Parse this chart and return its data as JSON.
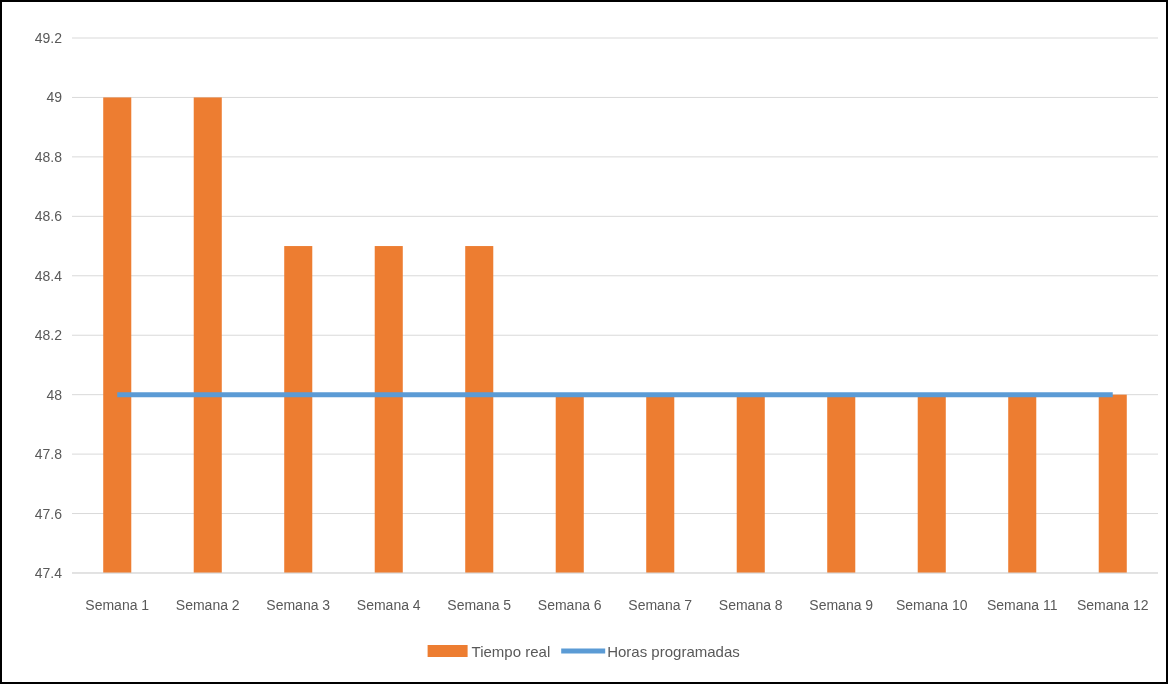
{
  "chart_data": {
    "type": "bar",
    "categories": [
      "Semana 1",
      "Semana 2",
      "Semana 3",
      "Semana 4",
      "Semana 5",
      "Semana 6",
      "Semana 7",
      "Semana 8",
      "Semana 9",
      "Semana 10",
      "Semana 11",
      "Semana 12"
    ],
    "series": [
      {
        "name": "Tiempo real",
        "color": "#ed7d31",
        "values": [
          49,
          49,
          48.5,
          48.5,
          48.5,
          48,
          48,
          48,
          48,
          48,
          48,
          48
        ]
      },
      {
        "name": "Horas programadas",
        "type": "line",
        "color": "#5b9bd5",
        "values": [
          48,
          48,
          48,
          48,
          48,
          48,
          48,
          48,
          48,
          48,
          48,
          48
        ]
      }
    ],
    "ylim": [
      47.4,
      49.2
    ],
    "yticks": [
      47.4,
      47.6,
      47.8,
      48,
      48.2,
      48.4,
      48.6,
      48.8,
      49,
      49.2
    ],
    "grid": "y",
    "legend": "bottom",
    "marker": "none"
  }
}
